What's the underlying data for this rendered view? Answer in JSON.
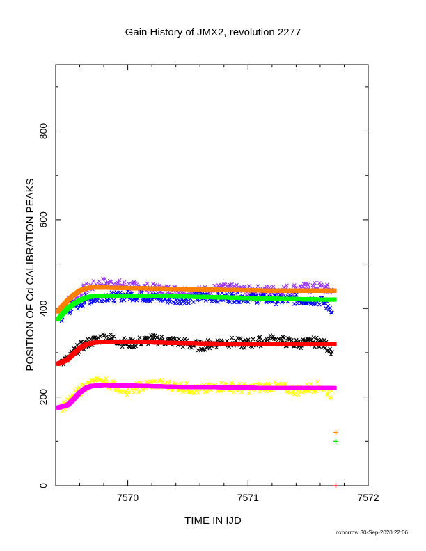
{
  "chart_data": {
    "type": "scatter",
    "title": "Gain History of JMX2, revolution 2277",
    "xlabel": "TIME IN IJD",
    "ylabel": "POSITION OF Cd CALIBRATION PEAKS",
    "xlim": [
      7569.4,
      7572.0
    ],
    "ylim": [
      0,
      950
    ],
    "x_ticks": [
      "7570",
      "7571",
      "7572"
    ],
    "y_ticks": [
      "200",
      "400",
      "600",
      "800"
    ],
    "y_tick_values": [
      200,
      400,
      600,
      800
    ],
    "x_tick_values": [
      7570,
      7571,
      7572
    ],
    "grid": false,
    "series": [
      {
        "color": "#9933ff",
        "marker": "x",
        "x": [
          7569.45,
          7569.5,
          7569.55,
          7569.6,
          7569.65,
          7569.7,
          7569.8,
          7569.9,
          7570.0,
          7570.2,
          7570.4,
          7570.6,
          7570.8,
          7571.0,
          7571.2,
          7571.4,
          7571.6,
          7571.7
        ],
        "y": [
          400,
          415,
          425,
          435,
          445,
          450,
          458,
          455,
          450,
          445,
          440,
          438,
          445,
          440,
          440,
          445,
          448,
          440
        ]
      },
      {
        "color": "#0000ff",
        "marker": "x",
        "x": [
          7569.45,
          7569.5,
          7569.55,
          7569.6,
          7569.65,
          7569.7,
          7569.8,
          7569.9,
          7570.0,
          7570.2,
          7570.4,
          7570.6,
          7570.8,
          7571.0,
          7571.2,
          7571.4,
          7571.6,
          7571.7
        ],
        "y": [
          380,
          395,
          405,
          410,
          420,
          420,
          428,
          425,
          430,
          425,
          420,
          425,
          425,
          425,
          420,
          420,
          418,
          398
        ]
      },
      {
        "color": "#000000",
        "marker": "x",
        "x": [
          7569.45,
          7569.5,
          7569.55,
          7569.6,
          7569.65,
          7569.7,
          7569.8,
          7569.9,
          7570.0,
          7570.2,
          7570.4,
          7570.6,
          7570.8,
          7571.0,
          7571.2,
          7571.4,
          7571.6,
          7571.7
        ],
        "y": [
          278,
          285,
          300,
          312,
          320,
          325,
          335,
          330,
          320,
          330,
          325,
          315,
          325,
          320,
          330,
          320,
          325,
          305
        ]
      },
      {
        "color": "#ffff00",
        "marker": "x",
        "x": [
          7569.45,
          7569.5,
          7569.55,
          7569.6,
          7569.65,
          7569.7,
          7569.8,
          7569.9,
          7570.0,
          7570.2,
          7570.4,
          7570.6,
          7570.8,
          7571.0,
          7571.2,
          7571.4,
          7571.6,
          7571.7
        ],
        "y": [
          178,
          185,
          200,
          215,
          225,
          230,
          235,
          225,
          215,
          230,
          225,
          215,
          225,
          218,
          225,
          215,
          225,
          205
        ]
      },
      {
        "color": "#ff8000",
        "marker": "line",
        "x": [
          7569.42,
          7569.45,
          7569.5,
          7569.55,
          7569.6,
          7569.65,
          7569.7,
          7569.8,
          7570.0,
          7570.4,
          7570.8,
          7571.2,
          7571.6,
          7571.72
        ],
        "y": [
          393,
          403,
          418,
          430,
          440,
          445,
          447,
          447,
          446,
          444,
          442,
          440,
          440,
          440
        ]
      },
      {
        "color": "#00ff00",
        "marker": "line",
        "x": [
          7569.42,
          7569.45,
          7569.5,
          7569.55,
          7569.6,
          7569.65,
          7569.7,
          7569.8,
          7570.0,
          7570.4,
          7570.8,
          7571.2,
          7571.6,
          7571.72
        ],
        "y": [
          375,
          385,
          400,
          410,
          418,
          424,
          427,
          428,
          428,
          427,
          425,
          422,
          420,
          420
        ]
      },
      {
        "color": "#ff0000",
        "marker": "line",
        "x": [
          7569.42,
          7569.45,
          7569.5,
          7569.55,
          7569.6,
          7569.65,
          7569.7,
          7569.8,
          7570.0,
          7570.4,
          7570.8,
          7571.2,
          7571.6,
          7571.72
        ],
        "y": [
          275,
          278,
          285,
          298,
          310,
          318,
          322,
          325,
          325,
          322,
          320,
          320,
          320,
          320
        ]
      },
      {
        "color": "#ff00ff",
        "marker": "line",
        "x": [
          7569.42,
          7569.45,
          7569.5,
          7569.55,
          7569.6,
          7569.65,
          7569.7,
          7569.8,
          7570.0,
          7570.4,
          7570.8,
          7571.2,
          7571.6,
          7571.72
        ],
        "y": [
          176,
          178,
          182,
          195,
          210,
          220,
          225,
          227,
          226,
          223,
          222,
          220,
          220,
          220
        ]
      },
      {
        "color": "#ff8000",
        "marker": "+",
        "x": [
          7571.73
        ],
        "y": [
          120
        ]
      },
      {
        "color": "#00cc00",
        "marker": "+",
        "x": [
          7571.73
        ],
        "y": [
          100
        ]
      },
      {
        "color": "#ff0000",
        "marker": "+",
        "x": [
          7571.73
        ],
        "y": [
          0
        ]
      }
    ]
  },
  "footer": {
    "stamp": "oxborrow 30-Sep-2020 22:06"
  }
}
